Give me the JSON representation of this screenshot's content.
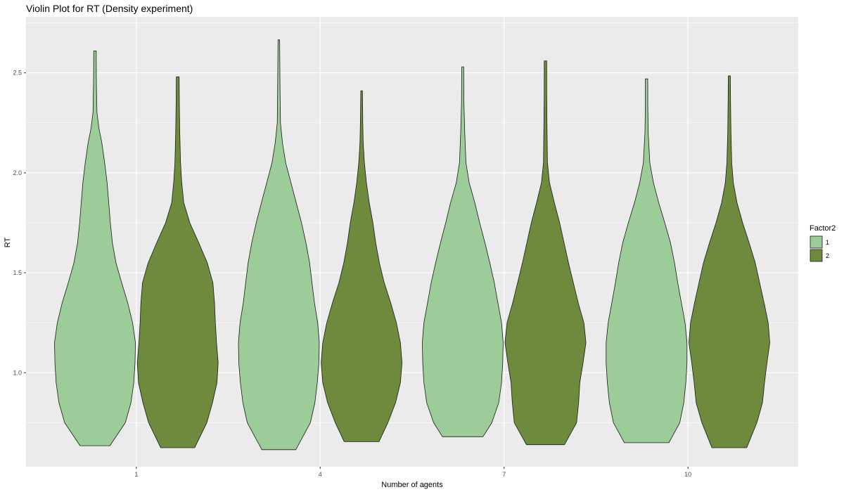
{
  "chart_data": {
    "type": "violin",
    "title": "Violin Plot for RT (Density experiment)",
    "xlabel": "Number of agents",
    "ylabel": "RT",
    "categories": [
      "1",
      "4",
      "7",
      "10"
    ],
    "ylim": [
      0.53,
      2.78
    ],
    "y_ticks": [
      "1.0",
      "1.5",
      "2.0",
      "2.5"
    ],
    "grid": true,
    "background": "#ebebeb",
    "legend": {
      "title": "Factor2",
      "position": "right",
      "entries": [
        {
          "label": "1",
          "color": "#9ccc98"
        },
        {
          "label": "2",
          "color": "#6e8a3c"
        }
      ]
    },
    "series": [
      {
        "name": "1",
        "color": "#9ccc98",
        "violins": [
          {
            "category": "1",
            "min": 0.635,
            "max": 2.61,
            "profile": [
              [
                0.635,
                0.37
              ],
              [
                0.75,
                0.75
              ],
              [
                0.85,
                0.89
              ],
              [
                0.95,
                0.96
              ],
              [
                1.05,
                0.99
              ],
              [
                1.15,
                1.0
              ],
              [
                1.25,
                0.93
              ],
              [
                1.35,
                0.81
              ],
              [
                1.45,
                0.66
              ],
              [
                1.55,
                0.52
              ],
              [
                1.65,
                0.43
              ],
              [
                1.75,
                0.38
              ],
              [
                1.85,
                0.34
              ],
              [
                1.95,
                0.3
              ],
              [
                2.05,
                0.24
              ],
              [
                2.15,
                0.17
              ],
              [
                2.22,
                0.1
              ],
              [
                2.3,
                0.05
              ],
              [
                2.45,
                0.035
              ],
              [
                2.61,
                0.03
              ]
            ]
          },
          {
            "category": "4",
            "min": 0.615,
            "max": 2.665,
            "profile": [
              [
                0.615,
                0.42
              ],
              [
                0.75,
                0.78
              ],
              [
                0.85,
                0.89
              ],
              [
                0.95,
                0.95
              ],
              [
                1.05,
                0.99
              ],
              [
                1.15,
                1.0
              ],
              [
                1.25,
                0.96
              ],
              [
                1.35,
                0.88
              ],
              [
                1.45,
                0.82
              ],
              [
                1.55,
                0.76
              ],
              [
                1.65,
                0.67
              ],
              [
                1.75,
                0.56
              ],
              [
                1.85,
                0.43
              ],
              [
                1.95,
                0.3
              ],
              [
                2.05,
                0.17
              ],
              [
                2.15,
                0.09
              ],
              [
                2.25,
                0.04
              ],
              [
                2.4,
                0.03
              ],
              [
                2.665,
                0.02
              ]
            ]
          },
          {
            "category": "7",
            "min": 0.68,
            "max": 2.53,
            "profile": [
              [
                0.68,
                0.5
              ],
              [
                0.75,
                0.72
              ],
              [
                0.85,
                0.89
              ],
              [
                0.95,
                0.96
              ],
              [
                1.05,
                0.99
              ],
              [
                1.15,
                1.0
              ],
              [
                1.25,
                0.96
              ],
              [
                1.35,
                0.87
              ],
              [
                1.45,
                0.78
              ],
              [
                1.55,
                0.67
              ],
              [
                1.65,
                0.55
              ],
              [
                1.75,
                0.42
              ],
              [
                1.85,
                0.3
              ],
              [
                1.95,
                0.16
              ],
              [
                2.05,
                0.08
              ],
              [
                2.2,
                0.05
              ],
              [
                2.35,
                0.03
              ],
              [
                2.53,
                0.025
              ]
            ]
          },
          {
            "category": "10",
            "min": 0.65,
            "max": 2.47,
            "profile": [
              [
                0.65,
                0.55
              ],
              [
                0.75,
                0.82
              ],
              [
                0.85,
                0.92
              ],
              [
                0.95,
                0.97
              ],
              [
                1.05,
                1.0
              ],
              [
                1.15,
                1.0
              ],
              [
                1.25,
                0.95
              ],
              [
                1.35,
                0.86
              ],
              [
                1.45,
                0.77
              ],
              [
                1.55,
                0.69
              ],
              [
                1.65,
                0.59
              ],
              [
                1.75,
                0.45
              ],
              [
                1.85,
                0.3
              ],
              [
                1.95,
                0.17
              ],
              [
                2.05,
                0.08
              ],
              [
                2.2,
                0.04
              ],
              [
                2.35,
                0.03
              ],
              [
                2.47,
                0.03
              ]
            ]
          }
        ]
      },
      {
        "name": "2",
        "color": "#6e8a3c",
        "violins": [
          {
            "category": "1",
            "min": 0.625,
            "max": 2.48,
            "profile": [
              [
                0.625,
                0.42
              ],
              [
                0.75,
                0.72
              ],
              [
                0.85,
                0.86
              ],
              [
                0.95,
                0.97
              ],
              [
                1.05,
                1.0
              ],
              [
                1.15,
                0.96
              ],
              [
                1.25,
                0.93
              ],
              [
                1.35,
                0.91
              ],
              [
                1.45,
                0.87
              ],
              [
                1.55,
                0.73
              ],
              [
                1.65,
                0.52
              ],
              [
                1.75,
                0.3
              ],
              [
                1.85,
                0.15
              ],
              [
                1.95,
                0.1
              ],
              [
                2.05,
                0.07
              ],
              [
                2.2,
                0.05
              ],
              [
                2.35,
                0.04
              ],
              [
                2.48,
                0.035
              ]
            ]
          },
          {
            "category": "4",
            "min": 0.655,
            "max": 2.41,
            "profile": [
              [
                0.655,
                0.43
              ],
              [
                0.75,
                0.65
              ],
              [
                0.85,
                0.84
              ],
              [
                0.95,
                0.96
              ],
              [
                1.05,
                1.0
              ],
              [
                1.15,
                0.96
              ],
              [
                1.25,
                0.86
              ],
              [
                1.35,
                0.72
              ],
              [
                1.45,
                0.56
              ],
              [
                1.55,
                0.44
              ],
              [
                1.65,
                0.35
              ],
              [
                1.75,
                0.28
              ],
              [
                1.85,
                0.19
              ],
              [
                1.95,
                0.12
              ],
              [
                2.05,
                0.07
              ],
              [
                2.15,
                0.04
              ],
              [
                2.25,
                0.03
              ],
              [
                2.41,
                0.02
              ]
            ]
          },
          {
            "category": "7",
            "min": 0.64,
            "max": 2.56,
            "profile": [
              [
                0.64,
                0.47
              ],
              [
                0.75,
                0.77
              ],
              [
                0.85,
                0.82
              ],
              [
                0.95,
                0.85
              ],
              [
                1.05,
                0.93
              ],
              [
                1.15,
                1.0
              ],
              [
                1.25,
                0.95
              ],
              [
                1.35,
                0.81
              ],
              [
                1.45,
                0.69
              ],
              [
                1.55,
                0.57
              ],
              [
                1.65,
                0.46
              ],
              [
                1.75,
                0.35
              ],
              [
                1.85,
                0.22
              ],
              [
                1.95,
                0.1
              ],
              [
                2.05,
                0.05
              ],
              [
                2.2,
                0.04
              ],
              [
                2.4,
                0.03
              ],
              [
                2.56,
                0.03
              ]
            ]
          },
          {
            "category": "10",
            "min": 0.625,
            "max": 2.485,
            "profile": [
              [
                0.625,
                0.43
              ],
              [
                0.75,
                0.68
              ],
              [
                0.85,
                0.82
              ],
              [
                0.95,
                0.87
              ],
              [
                1.05,
                0.93
              ],
              [
                1.15,
                1.0
              ],
              [
                1.25,
                0.96
              ],
              [
                1.35,
                0.86
              ],
              [
                1.45,
                0.75
              ],
              [
                1.55,
                0.64
              ],
              [
                1.65,
                0.49
              ],
              [
                1.75,
                0.33
              ],
              [
                1.85,
                0.19
              ],
              [
                1.95,
                0.1
              ],
              [
                2.05,
                0.06
              ],
              [
                2.2,
                0.04
              ],
              [
                2.35,
                0.03
              ],
              [
                2.485,
                0.025
              ]
            ]
          }
        ]
      }
    ]
  }
}
